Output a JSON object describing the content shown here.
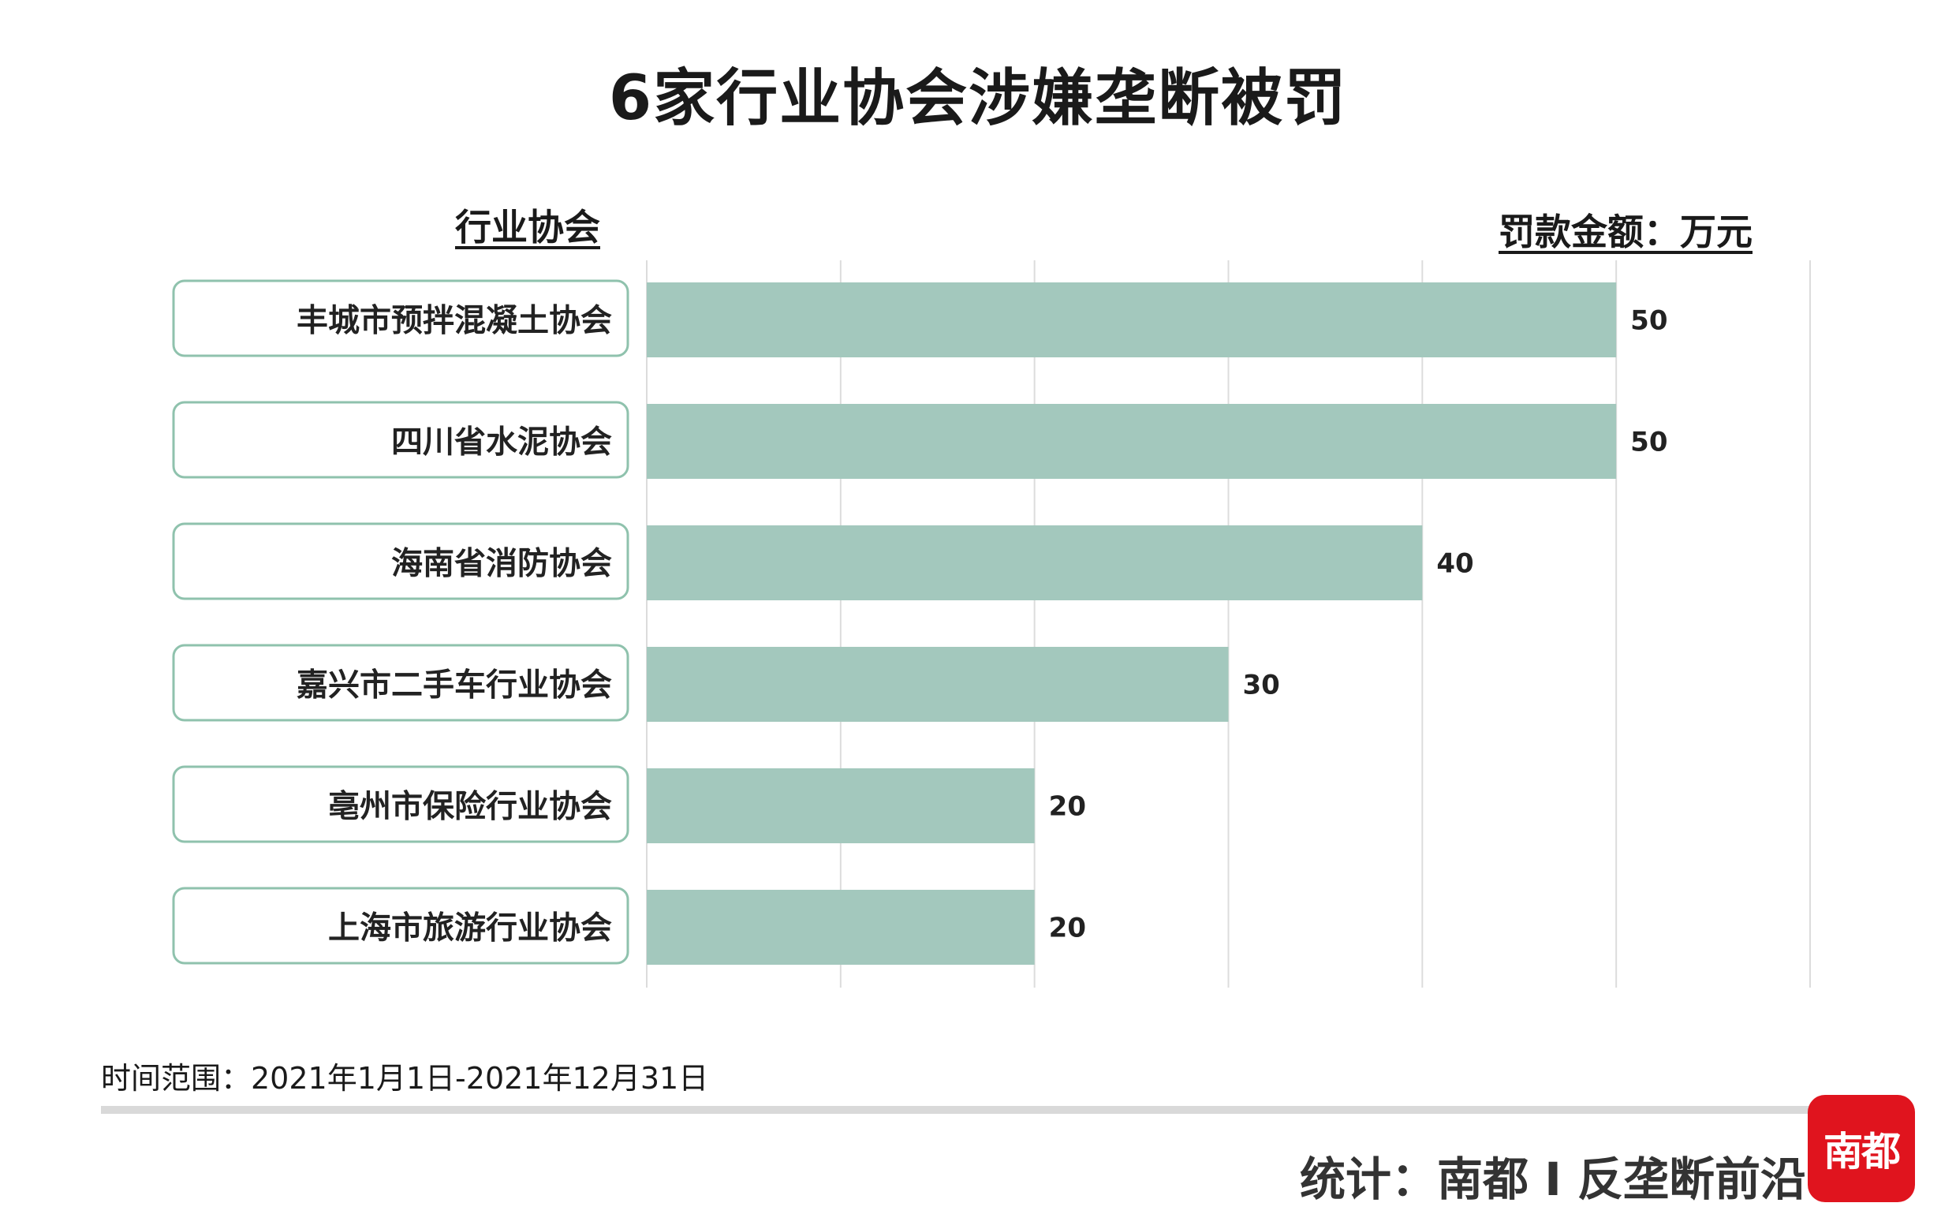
{
  "chart_data": {
    "type": "bar",
    "orientation": "horizontal",
    "title": "6家行业协会涉嫌垄断被罚",
    "ylabel": "行业协会",
    "xlabel": "罚款金额：万元",
    "categories": [
      "丰城市预拌混凝土协会",
      "四川省水泥协会",
      "海南省消防协会",
      "嘉兴市二手车行业协会",
      "亳州市保险行业协会",
      "上海市旅游行业协会"
    ],
    "values": [
      50,
      50,
      40,
      30,
      20,
      20
    ],
    "xlim": [
      0,
      60
    ],
    "grid": true,
    "bar_color": "#a3c8bd",
    "label_border_color": "#8fc2ad"
  },
  "footnote": "时间范围：2021年1月1日-2021年12月31日",
  "credit": "统计：南都 I 反垄断前沿",
  "logo_text": "南都"
}
